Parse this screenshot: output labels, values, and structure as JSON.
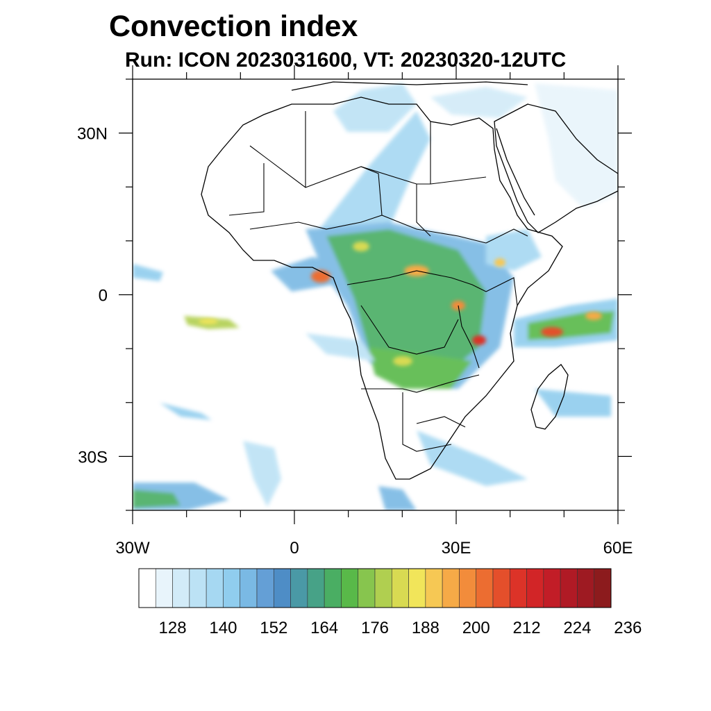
{
  "title": "Convection index",
  "subtitle": "Run: ICON 2023031600,  VT: 20230320-12UTC",
  "map": {
    "lon_range": [
      -30,
      60
    ],
    "lat_range": [
      -40,
      40
    ],
    "lat_ticks": [
      {
        "lat": 30,
        "label": "30N"
      },
      {
        "lat": 0,
        "label": "0"
      },
      {
        "lat": -30,
        "label": "30S"
      }
    ],
    "lon_ticks": [
      {
        "lon": -30,
        "label": "30W"
      },
      {
        "lon": 0,
        "label": "0"
      },
      {
        "lon": 30,
        "label": "30E"
      },
      {
        "lon": 60,
        "label": "60E"
      }
    ]
  },
  "colorbar": {
    "colors": [
      "#ffffff",
      "#e8f4fb",
      "#d2ebf8",
      "#bce2f5",
      "#a6d8f2",
      "#90cdee",
      "#7ab9e4",
      "#649fd6",
      "#4e8dc6",
      "#4a99a6",
      "#47a287",
      "#4aae63",
      "#59b949",
      "#87c54e",
      "#b0cf50",
      "#d8da52",
      "#f1e55a",
      "#f6c854",
      "#f6aa47",
      "#f28c3b",
      "#ec6d31",
      "#e44f2b",
      "#dc3328",
      "#d22527",
      "#c21d27",
      "#b01a25",
      "#9e1a22",
      "#8c1b1d"
    ],
    "labels": [
      "128",
      "140",
      "152",
      "164",
      "176",
      "188",
      "200",
      "212",
      "224",
      "236"
    ]
  }
}
